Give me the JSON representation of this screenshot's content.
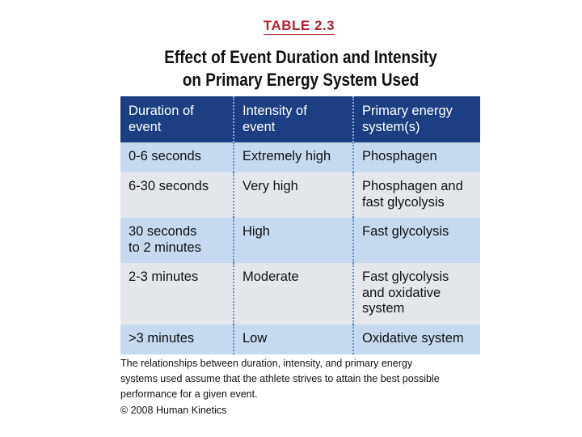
{
  "table_label": "TABLE 2.3",
  "title": {
    "line1": "Effect of Event Duration and Intensity",
    "line2": "on Primary Energy System Used"
  },
  "table": {
    "headers": [
      [
        "Duration of",
        "event"
      ],
      [
        "Intensity of",
        "event"
      ],
      [
        "Primary energy",
        "system(s)"
      ]
    ],
    "rows": [
      {
        "duration": [
          "0-6 seconds"
        ],
        "intensity": [
          "Extremely high"
        ],
        "system": [
          "Phosphagen"
        ]
      },
      {
        "duration": [
          "6-30 seconds"
        ],
        "intensity": [
          "Very high"
        ],
        "system": [
          "Phosphagen and",
          "fast glycolysis"
        ]
      },
      {
        "duration": [
          "30 seconds",
          "to 2 minutes"
        ],
        "intensity": [
          "High"
        ],
        "system": [
          "Fast glycolysis"
        ]
      },
      {
        "duration": [
          "2-3 minutes"
        ],
        "intensity": [
          "Moderate"
        ],
        "system": [
          "Fast glycolysis",
          "and oxidative",
          "system"
        ]
      },
      {
        "duration": [
          ">3 minutes"
        ],
        "intensity": [
          "Low"
        ],
        "system": [
          "Oxidative system"
        ]
      }
    ]
  },
  "caption": [
    "The relationships between duration, intensity, and primary energy",
    "systems used assume that the athlete strives to attain the best possible",
    "performance for a given event."
  ],
  "copyright": "© 2008 Human Kinetics",
  "colors": {
    "header_bg": "#1b3f82",
    "row_light": "#c7d9ee",
    "row_gray": "#e3e7ec",
    "label_red": "#b0262c"
  }
}
